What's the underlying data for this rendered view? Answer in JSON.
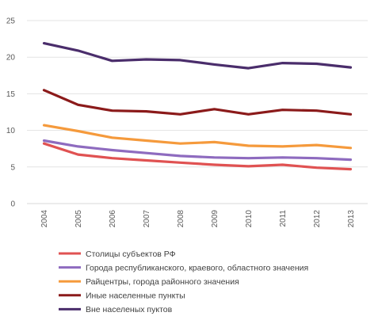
{
  "chart_data": {
    "type": "line",
    "title": "",
    "xlabel": "",
    "ylabel": "",
    "ylim": [
      0,
      25
    ],
    "yticks": [
      0,
      5,
      10,
      15,
      20,
      25
    ],
    "grid": "horizontal",
    "legend_position": "bottom",
    "categories": [
      "2004",
      "2005",
      "2006",
      "2007",
      "2008",
      "2009",
      "2010",
      "2011",
      "2012",
      "2013"
    ],
    "series": [
      {
        "name": "Столицы субъектов РФ",
        "color": "#e05252",
        "values": [
          8.2,
          6.7,
          6.2,
          5.9,
          5.6,
          5.3,
          5.1,
          5.3,
          4.9,
          4.7
        ]
      },
      {
        "name": "Города республиканского, краевого, областного значения",
        "color": "#8e6bbf",
        "values": [
          8.6,
          7.8,
          7.3,
          6.9,
          6.5,
          6.3,
          6.2,
          6.3,
          6.2,
          6.0
        ]
      },
      {
        "name": "Райцентры, города районного значения",
        "color": "#f59a3c",
        "values": [
          10.7,
          9.9,
          9.0,
          8.6,
          8.2,
          8.4,
          7.9,
          7.8,
          8.0,
          7.6
        ]
      },
      {
        "name": "Иные населенные пункты",
        "color": "#8b1a1a",
        "values": [
          15.5,
          13.5,
          12.7,
          12.6,
          12.2,
          12.9,
          12.2,
          12.8,
          12.7,
          12.2
        ]
      },
      {
        "name": "Вне населеных пуктов",
        "color": "#4a2d6b",
        "values": [
          21.9,
          20.9,
          19.5,
          19.7,
          19.6,
          19.0,
          18.5,
          19.2,
          19.1,
          18.6
        ]
      }
    ]
  }
}
